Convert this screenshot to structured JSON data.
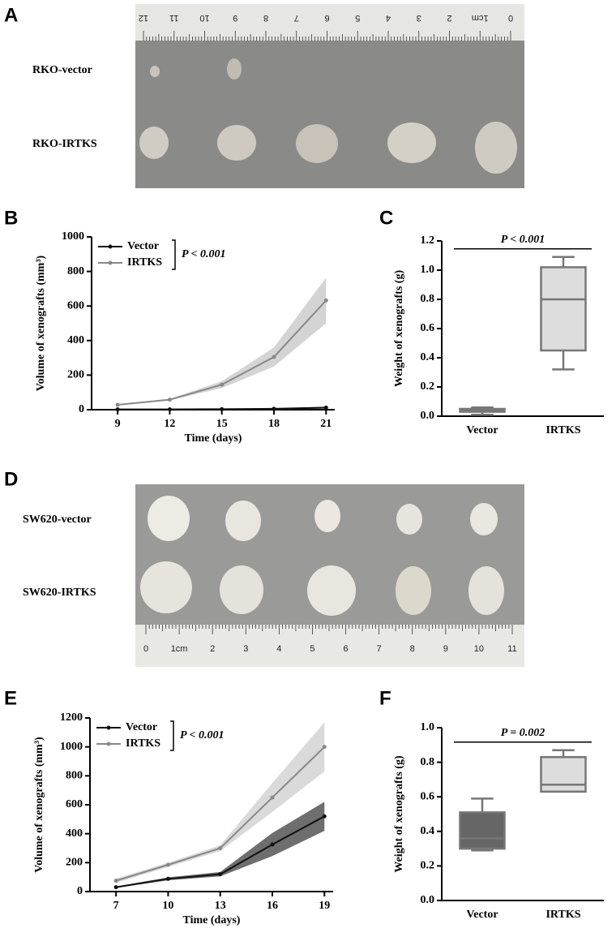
{
  "photos": [
    {
      "panel": "A",
      "rows": [
        "RKO-vector",
        "RKO-IRTKS"
      ],
      "ruler": [
        "12",
        "11",
        "10",
        "9",
        "8",
        "7",
        "6",
        "5",
        "4",
        "3",
        "2",
        "1cm",
        "0"
      ]
    },
    {
      "panel": "D",
      "rows": [
        "SW620-vector",
        "SW620-IRTKS"
      ],
      "ruler": [
        "0",
        "1cm",
        "2",
        "3",
        "4",
        "5",
        "6",
        "7",
        "8",
        "9",
        "10",
        "11"
      ]
    }
  ],
  "chart_data": [
    {
      "type": "line",
      "panel": "B",
      "xlabel": "Time (days)",
      "ylabel": "Volume of xenografts (mm³)",
      "x": [
        9,
        12,
        15,
        18,
        21
      ],
      "xlim": [
        7.5,
        21.5
      ],
      "xticks": [
        9,
        12,
        15,
        18,
        21
      ],
      "ylim": [
        0,
        1000
      ],
      "yticks": [
        0,
        200,
        400,
        600,
        800,
        1000
      ],
      "legend": "upper-left",
      "annotation": "P < 0.001",
      "series": [
        {
          "name": "Vector",
          "color": "#111111",
          "band_color": "#444444",
          "values": [
            2,
            2,
            3,
            5,
            12
          ],
          "error": [
            1,
            1,
            1,
            2,
            5
          ]
        },
        {
          "name": "IRTKS",
          "color": "#888888",
          "band_color": "#cccccc",
          "values": [
            28,
            58,
            145,
            305,
            632
          ],
          "error": [
            3,
            4,
            20,
            55,
            132
          ]
        }
      ]
    },
    {
      "type": "box",
      "panel": "C",
      "ylabel": "Weight of xenografts (g)",
      "categories": [
        "Vector",
        "IRTKS"
      ],
      "ylim": [
        0,
        1.2
      ],
      "yticks": [
        {
          "value": 0,
          "label": "0.0"
        },
        0.2,
        0.4,
        0.6,
        0.8,
        {
          "value": 1,
          "label": "1.0"
        },
        1.2
      ],
      "annotation": "P < 0.001",
      "boxes": [
        {
          "color": "#666666",
          "min": 0.01,
          "q1": 0.03,
          "median": 0.04,
          "q3": 0.05,
          "max": 0.06
        },
        {
          "color": "#dddddd",
          "min": 0.32,
          "q1": 0.45,
          "median": 0.8,
          "q3": 1.02,
          "max": 1.09
        }
      ]
    },
    {
      "type": "line",
      "panel": "E",
      "xlabel": "Time (days)",
      "ylabel": "Volume of xenografts (mm³)",
      "x": [
        7,
        10,
        13,
        16,
        19
      ],
      "xlim": [
        5.5,
        19.5
      ],
      "xticks": [
        7,
        10,
        13,
        16,
        19
      ],
      "ylim": [
        0,
        1200
      ],
      "yticks": [
        0,
        200,
        400,
        600,
        800,
        1000,
        1200
      ],
      "legend": "upper-left",
      "annotation": "P < 0.001",
      "series": [
        {
          "name": "Vector",
          "color": "#111111",
          "band_color": "#555555",
          "values": [
            30,
            88,
            120,
            325,
            520
          ],
          "error": [
            5,
            10,
            15,
            80,
            100
          ]
        },
        {
          "name": "IRTKS",
          "color": "#888888",
          "band_color": "#d4d4d4",
          "values": [
            75,
            185,
            300,
            650,
            1000
          ],
          "error": [
            15,
            15,
            20,
            100,
            170
          ]
        }
      ]
    },
    {
      "type": "box",
      "panel": "F",
      "ylabel": "Weight of xenografts (g)",
      "categories": [
        "Vector",
        "IRTKS"
      ],
      "ylim": [
        0,
        1
      ],
      "yticks": [
        {
          "value": 0,
          "label": "0.0"
        },
        0.2,
        0.4,
        0.6,
        0.8,
        {
          "value": 1,
          "label": "1.0"
        }
      ],
      "annotation": "P = 0.002",
      "boxes": [
        {
          "color": "#666666",
          "min": 0.29,
          "q1": 0.3,
          "median": 0.36,
          "q3": 0.51,
          "max": 0.59
        },
        {
          "color": "#dddddd",
          "min": 0.63,
          "q1": 0.63,
          "median": 0.67,
          "q3": 0.83,
          "max": 0.87
        }
      ]
    }
  ]
}
